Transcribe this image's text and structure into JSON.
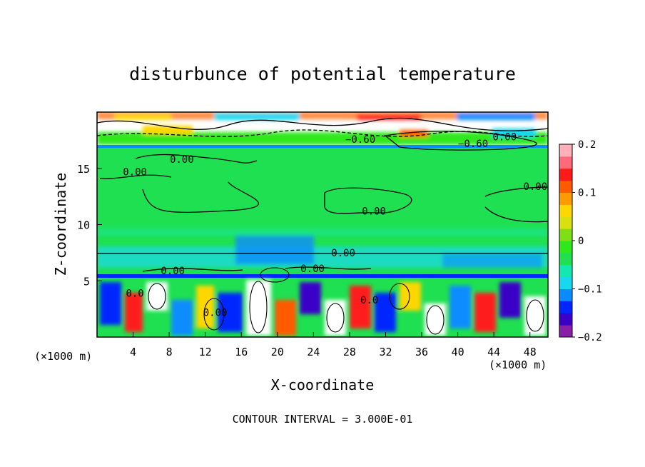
{
  "chart_data": {
    "type": "heatmap",
    "title": "disturbunce of potential temperature",
    "xlabel": "X-coordinate",
    "ylabel": "Z-coordinate",
    "x_unit": "(×1000 m)",
    "x_unit_right": "(×1000 m)",
    "xlim": [
      0,
      50
    ],
    "ylim": [
      0,
      20
    ],
    "x_ticks": [
      4,
      8,
      12,
      16,
      20,
      24,
      28,
      32,
      36,
      40,
      44,
      48
    ],
    "y_ticks": [
      5,
      10,
      15
    ],
    "colorbar": {
      "range": [
        -0.2,
        0.2
      ],
      "ticks": [
        {
          "value": 0.2,
          "label": "0.2"
        },
        {
          "value": 0.1,
          "label": "0.1"
        },
        {
          "value": 0,
          "label": "0"
        },
        {
          "value": -0.1,
          "label": "-0.1"
        },
        {
          "value": -0.2,
          "label": "-0.2"
        }
      ],
      "colors": [
        "#8a1fa8",
        "#3b00c8",
        "#0026ff",
        "#0a8cff",
        "#18d8f0",
        "#12e8b0",
        "#1ee050",
        "#2ee81a",
        "#7ee014",
        "#d8e010",
        "#ffd700",
        "#ff9a00",
        "#ff5a00",
        "#ff1a1a",
        "#ff6a7a",
        "#ffb0b8"
      ]
    },
    "contour_interval": "CONTOUR INTERVAL = 3.000E-01",
    "contour_labels": [
      {
        "text": "0.00",
        "x": 9.4,
        "z": 15.8
      },
      {
        "text": "0.00",
        "x": 4.2,
        "z": 14.7
      },
      {
        "text": "0.00",
        "x": 48.6,
        "z": 13.4
      },
      {
        "text": "0.00",
        "x": 30.7,
        "z": 11.2
      },
      {
        "text": "0.00",
        "x": 27.3,
        "z": 7.5
      },
      {
        "text": "0.00",
        "x": 23.9,
        "z": 6.1
      },
      {
        "text": "0.00",
        "x": 8.4,
        "z": 5.9
      },
      {
        "text": "-0.60",
        "x": 29.2,
        "z": 17.6
      },
      {
        "text": "-0.60",
        "x": 41.7,
        "z": 17.2
      },
      {
        "text": "0.00",
        "x": 45.2,
        "z": 17.8
      },
      {
        "text": "0.00",
        "x": 13.1,
        "z": 2.2
      },
      {
        "text": "0.0",
        "x": 4.2,
        "z": 3.9
      },
      {
        "text": "0.0",
        "x": 30.2,
        "z": 3.3
      }
    ],
    "bands": [
      {
        "z0": 17.2,
        "z1": 20,
        "value": 0.25
      },
      {
        "z0": 6.2,
        "z1": 17.2,
        "value": 0.0
      },
      {
        "z0": 5.6,
        "z1": 6.2,
        "value": -0.08
      },
      {
        "z0": 5.4,
        "z1": 5.6,
        "value": -0.3
      },
      {
        "z0": 0,
        "z1": 5.4,
        "value": 0.2
      }
    ]
  }
}
